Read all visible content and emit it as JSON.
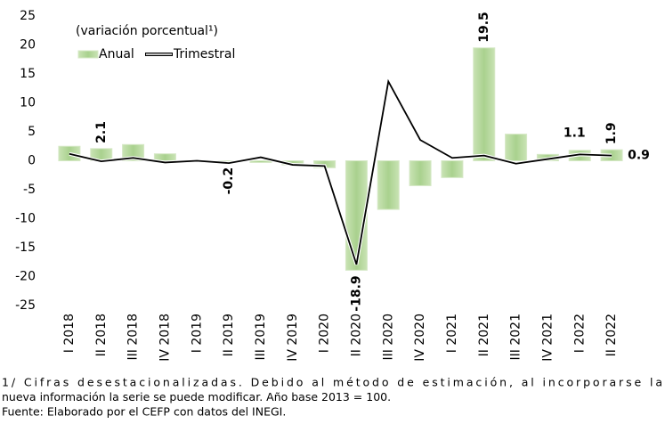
{
  "chart_data": {
    "type": "bar-line",
    "annotation": "(variación porcentual¹)",
    "categories": [
      "I 2018",
      "II 2018",
      "III 2018",
      "IV 2018",
      "I 2019",
      "II 2019",
      "III 2019",
      "IV 2019",
      "I 2020",
      "II 2020",
      "III 2020",
      "IV 2020",
      "I 2021",
      "II 2021",
      "III 2021",
      "IV 2021",
      "I 2022",
      "II 2022"
    ],
    "series": [
      {
        "name": "Anual",
        "type": "bar",
        "color": "#a9d18e",
        "label_color": "#8cc063",
        "values": [
          2.5,
          2.1,
          2.8,
          1.2,
          0.1,
          -0.2,
          -0.3,
          -0.7,
          -1.2,
          -18.9,
          -8.4,
          -4.3,
          -2.9,
          19.5,
          4.6,
          1.1,
          1.8,
          1.9
        ],
        "value_labels": [
          null,
          "2.1",
          null,
          null,
          null,
          "-0.2",
          null,
          null,
          null,
          "-18.9",
          null,
          null,
          null,
          "19.5",
          null,
          null,
          null,
          "1.9"
        ]
      },
      {
        "name": "Trimestral",
        "type": "line",
        "color": "#000000",
        "label_color": "#000000",
        "values": [
          1.2,
          -0.1,
          0.5,
          -0.3,
          0.0,
          -0.4,
          0.6,
          -0.7,
          -0.9,
          -17.9,
          13.7,
          3.6,
          0.5,
          0.9,
          -0.5,
          0.3,
          1.1,
          0.9
        ],
        "value_labels": [
          null,
          null,
          null,
          null,
          null,
          null,
          null,
          null,
          null,
          null,
          null,
          null,
          null,
          null,
          null,
          null,
          "1.1",
          "0.9"
        ]
      }
    ],
    "ylim": [
      -25,
      25
    ],
    "yticks": [
      -25,
      -20,
      -15,
      -10,
      -5,
      0,
      5,
      10,
      15,
      20,
      25
    ],
    "grid": false,
    "footnotes": [
      "1/ Cifras desestacionalizadas. Debido al método de estimación, al incorporarse la",
      "nueva información la serie se puede modificar. Año base 2013 = 100.",
      "Fuente: Elaborado por el CEFP con datos del INEGI."
    ]
  }
}
